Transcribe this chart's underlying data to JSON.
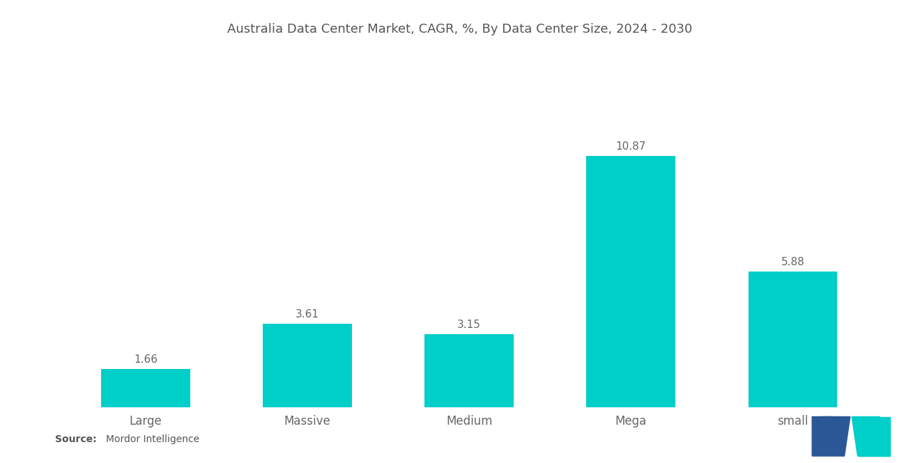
{
  "title": "Australia Data Center Market, CAGR, %, By Data Center Size, 2024 - 2030",
  "categories": [
    "Large",
    "Massive",
    "Medium",
    "Mega",
    "small"
  ],
  "values": [
    1.66,
    3.61,
    3.15,
    10.87,
    5.88
  ],
  "bar_color": "#00CEC9",
  "background_color": "#ffffff",
  "title_fontsize": 13,
  "label_fontsize": 12,
  "value_fontsize": 11,
  "source_bold": "Source:",
  "source_normal": "  Mordor Intelligence",
  "ylim": [
    0,
    14
  ],
  "bar_width": 0.55,
  "logo_blue": "#2B5797",
  "logo_teal": "#00CEC9"
}
